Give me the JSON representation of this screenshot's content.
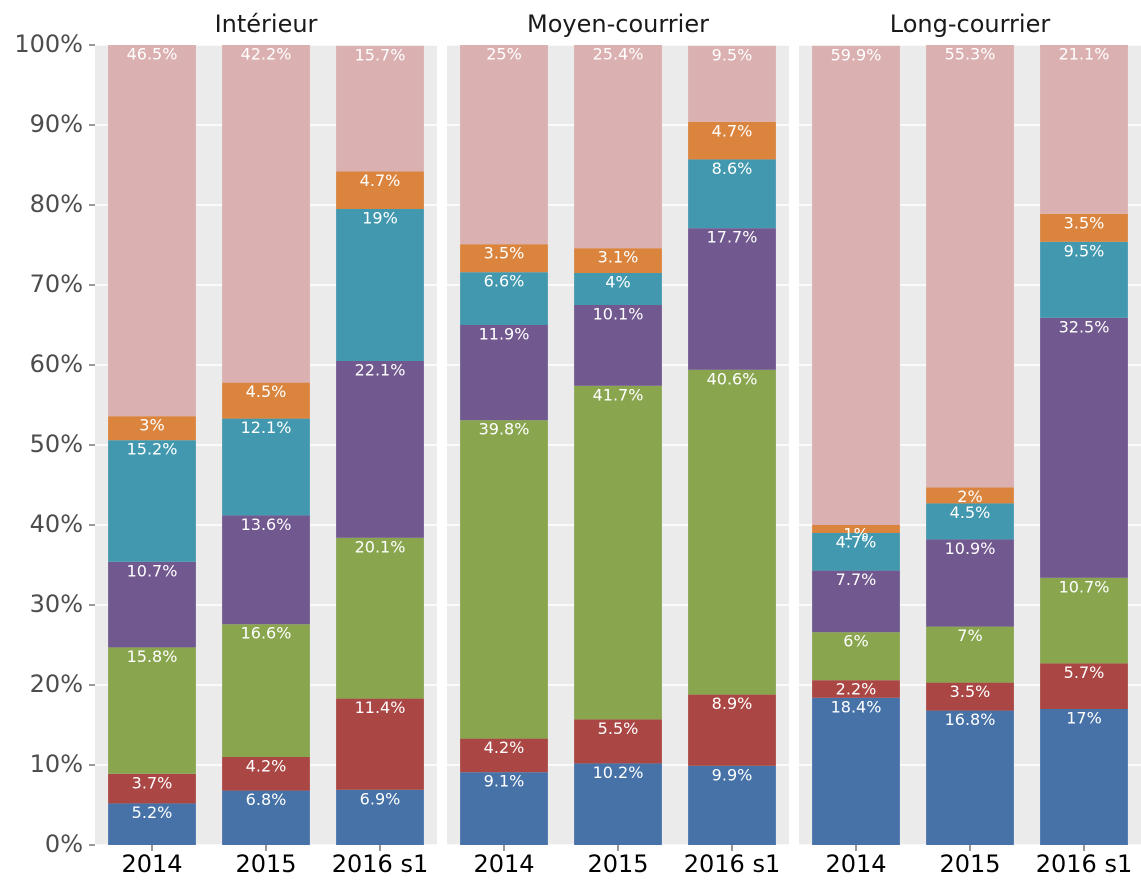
{
  "chart_data": [
    {
      "type": "bar",
      "stacked": true,
      "title": "Intérieur",
      "categories": [
        "2014",
        "2015",
        "2016 s1"
      ],
      "ylim": [
        0,
        100
      ],
      "yticks": [
        {
          "value": 0,
          "label": "0%"
        },
        {
          "value": 10,
          "label": "10%"
        },
        {
          "value": 20,
          "label": "20%"
        },
        {
          "value": 30,
          "label": "30%"
        },
        {
          "value": 40,
          "label": "40%"
        },
        {
          "value": 50,
          "label": "50%"
        },
        {
          "value": 60,
          "label": "60%"
        },
        {
          "value": 70,
          "label": "70%"
        },
        {
          "value": 80,
          "label": "80%"
        },
        {
          "value": 90,
          "label": "90%"
        },
        {
          "value": 100,
          "label": "100%"
        }
      ],
      "grid": true,
      "series": [
        {
          "color": "#4672a8",
          "values": [
            5.2,
            6.8,
            6.9
          ],
          "value_labels": [
            "5.2%",
            "6.8%",
            "6.9%"
          ]
        },
        {
          "color": "#aa4644",
          "values": [
            3.7,
            4.2,
            11.4
          ],
          "value_labels": [
            "3.7%",
            "4.2%",
            "11.4%"
          ]
        },
        {
          "color": "#89a54e",
          "values": [
            15.8,
            16.6,
            20.1
          ],
          "value_labels": [
            "15.8%",
            "16.6%",
            "20.1%"
          ]
        },
        {
          "color": "#71588f",
          "values": [
            10.7,
            13.6,
            22.1
          ],
          "value_labels": [
            "10.7%",
            "13.6%",
            "22.1%"
          ]
        },
        {
          "color": "#4198af",
          "values": [
            15.2,
            12.1,
            19
          ],
          "value_labels": [
            "15.2%",
            "12.1%",
            "19%"
          ]
        },
        {
          "color": "#db843d",
          "values": [
            3,
            4.5,
            4.7
          ],
          "value_labels": [
            "3%",
            "4.5%",
            "4.7%"
          ]
        },
        {
          "color": "#dbb0b1",
          "values": [
            46.5,
            42.2,
            15.7
          ],
          "value_labels": [
            "46.5%",
            "42.2%",
            "15.7%"
          ]
        }
      ]
    },
    {
      "type": "bar",
      "stacked": true,
      "title": "Moyen-courrier",
      "categories": [
        "2014",
        "2015",
        "2016 s1"
      ],
      "ylim": [
        0,
        100
      ],
      "series": [
        {
          "color": "#4672a8",
          "values": [
            9.1,
            10.2,
            9.9
          ],
          "value_labels": [
            "9.1%",
            "10.2%",
            "9.9%"
          ]
        },
        {
          "color": "#aa4644",
          "values": [
            4.2,
            5.5,
            8.9
          ],
          "value_labels": [
            "4.2%",
            "5.5%",
            "8.9%"
          ]
        },
        {
          "color": "#89a54e",
          "values": [
            39.8,
            41.7,
            40.6
          ],
          "value_labels": [
            "39.8%",
            "41.7%",
            "40.6%"
          ]
        },
        {
          "color": "#71588f",
          "values": [
            11.9,
            10.1,
            17.7
          ],
          "value_labels": [
            "11.9%",
            "10.1%",
            "17.7%"
          ]
        },
        {
          "color": "#4198af",
          "values": [
            6.6,
            4,
            8.6
          ],
          "value_labels": [
            "6.6%",
            "4%",
            "8.6%"
          ]
        },
        {
          "color": "#db843d",
          "values": [
            3.5,
            3.1,
            4.7
          ],
          "value_labels": [
            "3.5%",
            "3.1%",
            "4.7%"
          ]
        },
        {
          "color": "#dbb0b1",
          "values": [
            25,
            25.4,
            9.5
          ],
          "value_labels": [
            "25%",
            "25.4%",
            "9.5%"
          ]
        }
      ]
    },
    {
      "type": "bar",
      "stacked": true,
      "title": "Long-courrier",
      "categories": [
        "2014",
        "2015",
        "2016 s1"
      ],
      "ylim": [
        0,
        100
      ],
      "series": [
        {
          "color": "#4672a8",
          "values": [
            18.4,
            16.8,
            17
          ],
          "value_labels": [
            "18.4%",
            "16.8%",
            "17%"
          ]
        },
        {
          "color": "#aa4644",
          "values": [
            2.2,
            3.5,
            5.7
          ],
          "value_labels": [
            "2.2%",
            "3.5%",
            "5.7%"
          ]
        },
        {
          "color": "#89a54e",
          "values": [
            6,
            7,
            10.7
          ],
          "value_labels": [
            "6%",
            "7%",
            "10.7%"
          ]
        },
        {
          "color": "#71588f",
          "values": [
            7.7,
            10.9,
            32.5
          ],
          "value_labels": [
            "7.7%",
            "10.9%",
            "32.5%"
          ]
        },
        {
          "color": "#4198af",
          "values": [
            4.7,
            4.5,
            9.5
          ],
          "value_labels": [
            "4.7%",
            "4.5%",
            "9.5%"
          ]
        },
        {
          "color": "#db843d",
          "values": [
            1,
            2,
            3.5
          ],
          "value_labels": [
            "1%",
            "2%",
            "3.5%"
          ]
        },
        {
          "color": "#dbb0b1",
          "values": [
            59.9,
            55.3,
            21.1
          ],
          "value_labels": [
            "59.9%",
            "55.3%",
            "21.1%"
          ]
        }
      ]
    }
  ]
}
